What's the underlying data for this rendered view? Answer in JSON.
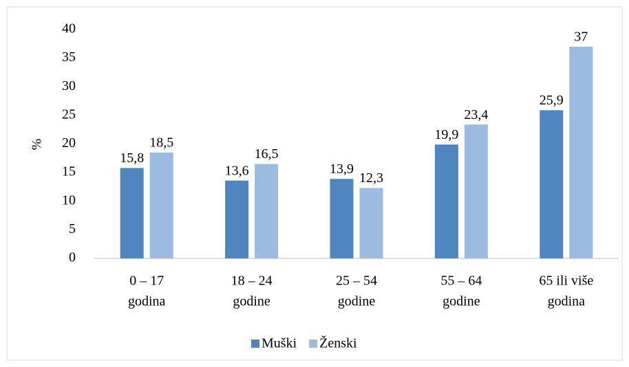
{
  "chart_data": {
    "type": "bar",
    "y_label": "%",
    "categories": [
      [
        "0 – 17",
        "godina"
      ],
      [
        "18 – 24",
        "godine"
      ],
      [
        "25 – 54",
        "godine"
      ],
      [
        "55 – 64",
        "godine"
      ],
      [
        "65 ili više",
        "godina"
      ]
    ],
    "series": [
      {
        "name": "Muški",
        "color": "#4f86c0",
        "values": [
          15.8,
          13.6,
          13.9,
          19.9,
          25.9
        ],
        "value_labels": [
          "15,8",
          "13,6",
          "13,9",
          "19,9",
          "25,9"
        ]
      },
      {
        "name": "Ženski",
        "color": "#9bbbe1",
        "values": [
          18.5,
          16.5,
          12.3,
          23.4,
          37
        ],
        "value_labels": [
          "18,5",
          "16,5",
          "12,3",
          "23,4",
          "37"
        ]
      }
    ],
    "ylim": [
      0,
      40
    ],
    "yticks": [
      0,
      5,
      10,
      15,
      20,
      25,
      30,
      35,
      40
    ],
    "grid": false,
    "legend": "bottom"
  }
}
